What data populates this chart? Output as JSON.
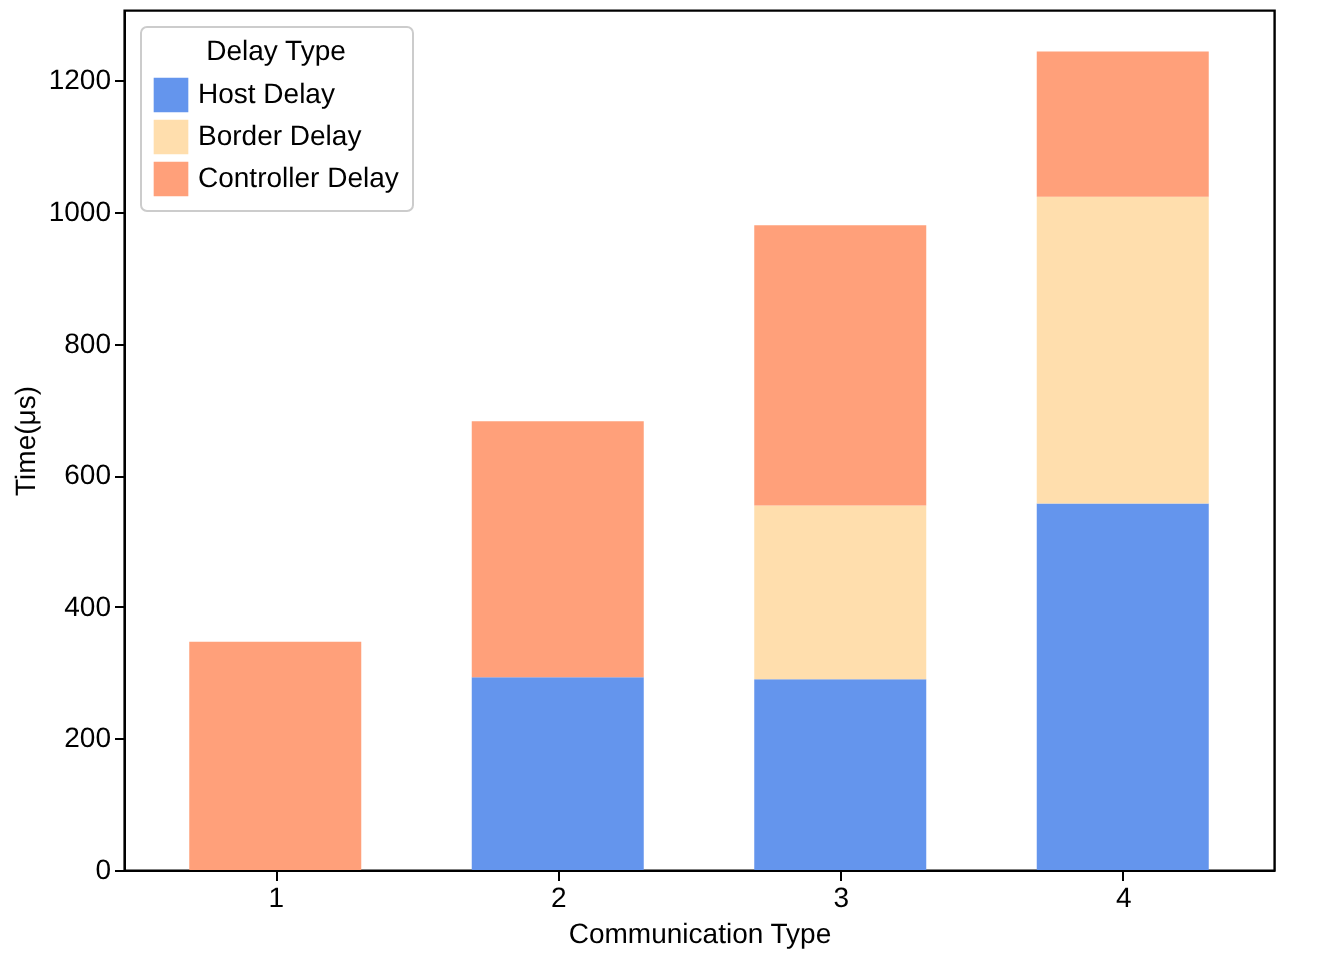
{
  "chart_data": {
    "type": "bar",
    "xlabel": "Communication Type",
    "ylabel": "Time(μs)",
    "legend_title": "Delay Type",
    "categories": [
      "1",
      "2",
      "3",
      "4"
    ],
    "stacked": true,
    "series": [
      {
        "name": "Host Delay",
        "color": "#6495ed",
        "values": [
          0,
          293,
          290,
          557
        ]
      },
      {
        "name": "Border Delay",
        "color": "#ffdead",
        "values": [
          0,
          0,
          264,
          466
        ]
      },
      {
        "name": "Controller Delay",
        "color": "#ffa07a",
        "values": [
          347,
          389,
          426,
          221
        ]
      }
    ],
    "ylim": [
      0,
      1307
    ],
    "yticks": [
      0,
      200,
      400,
      600,
      800,
      1000,
      1200
    ],
    "grid": false,
    "legend": "top left"
  }
}
